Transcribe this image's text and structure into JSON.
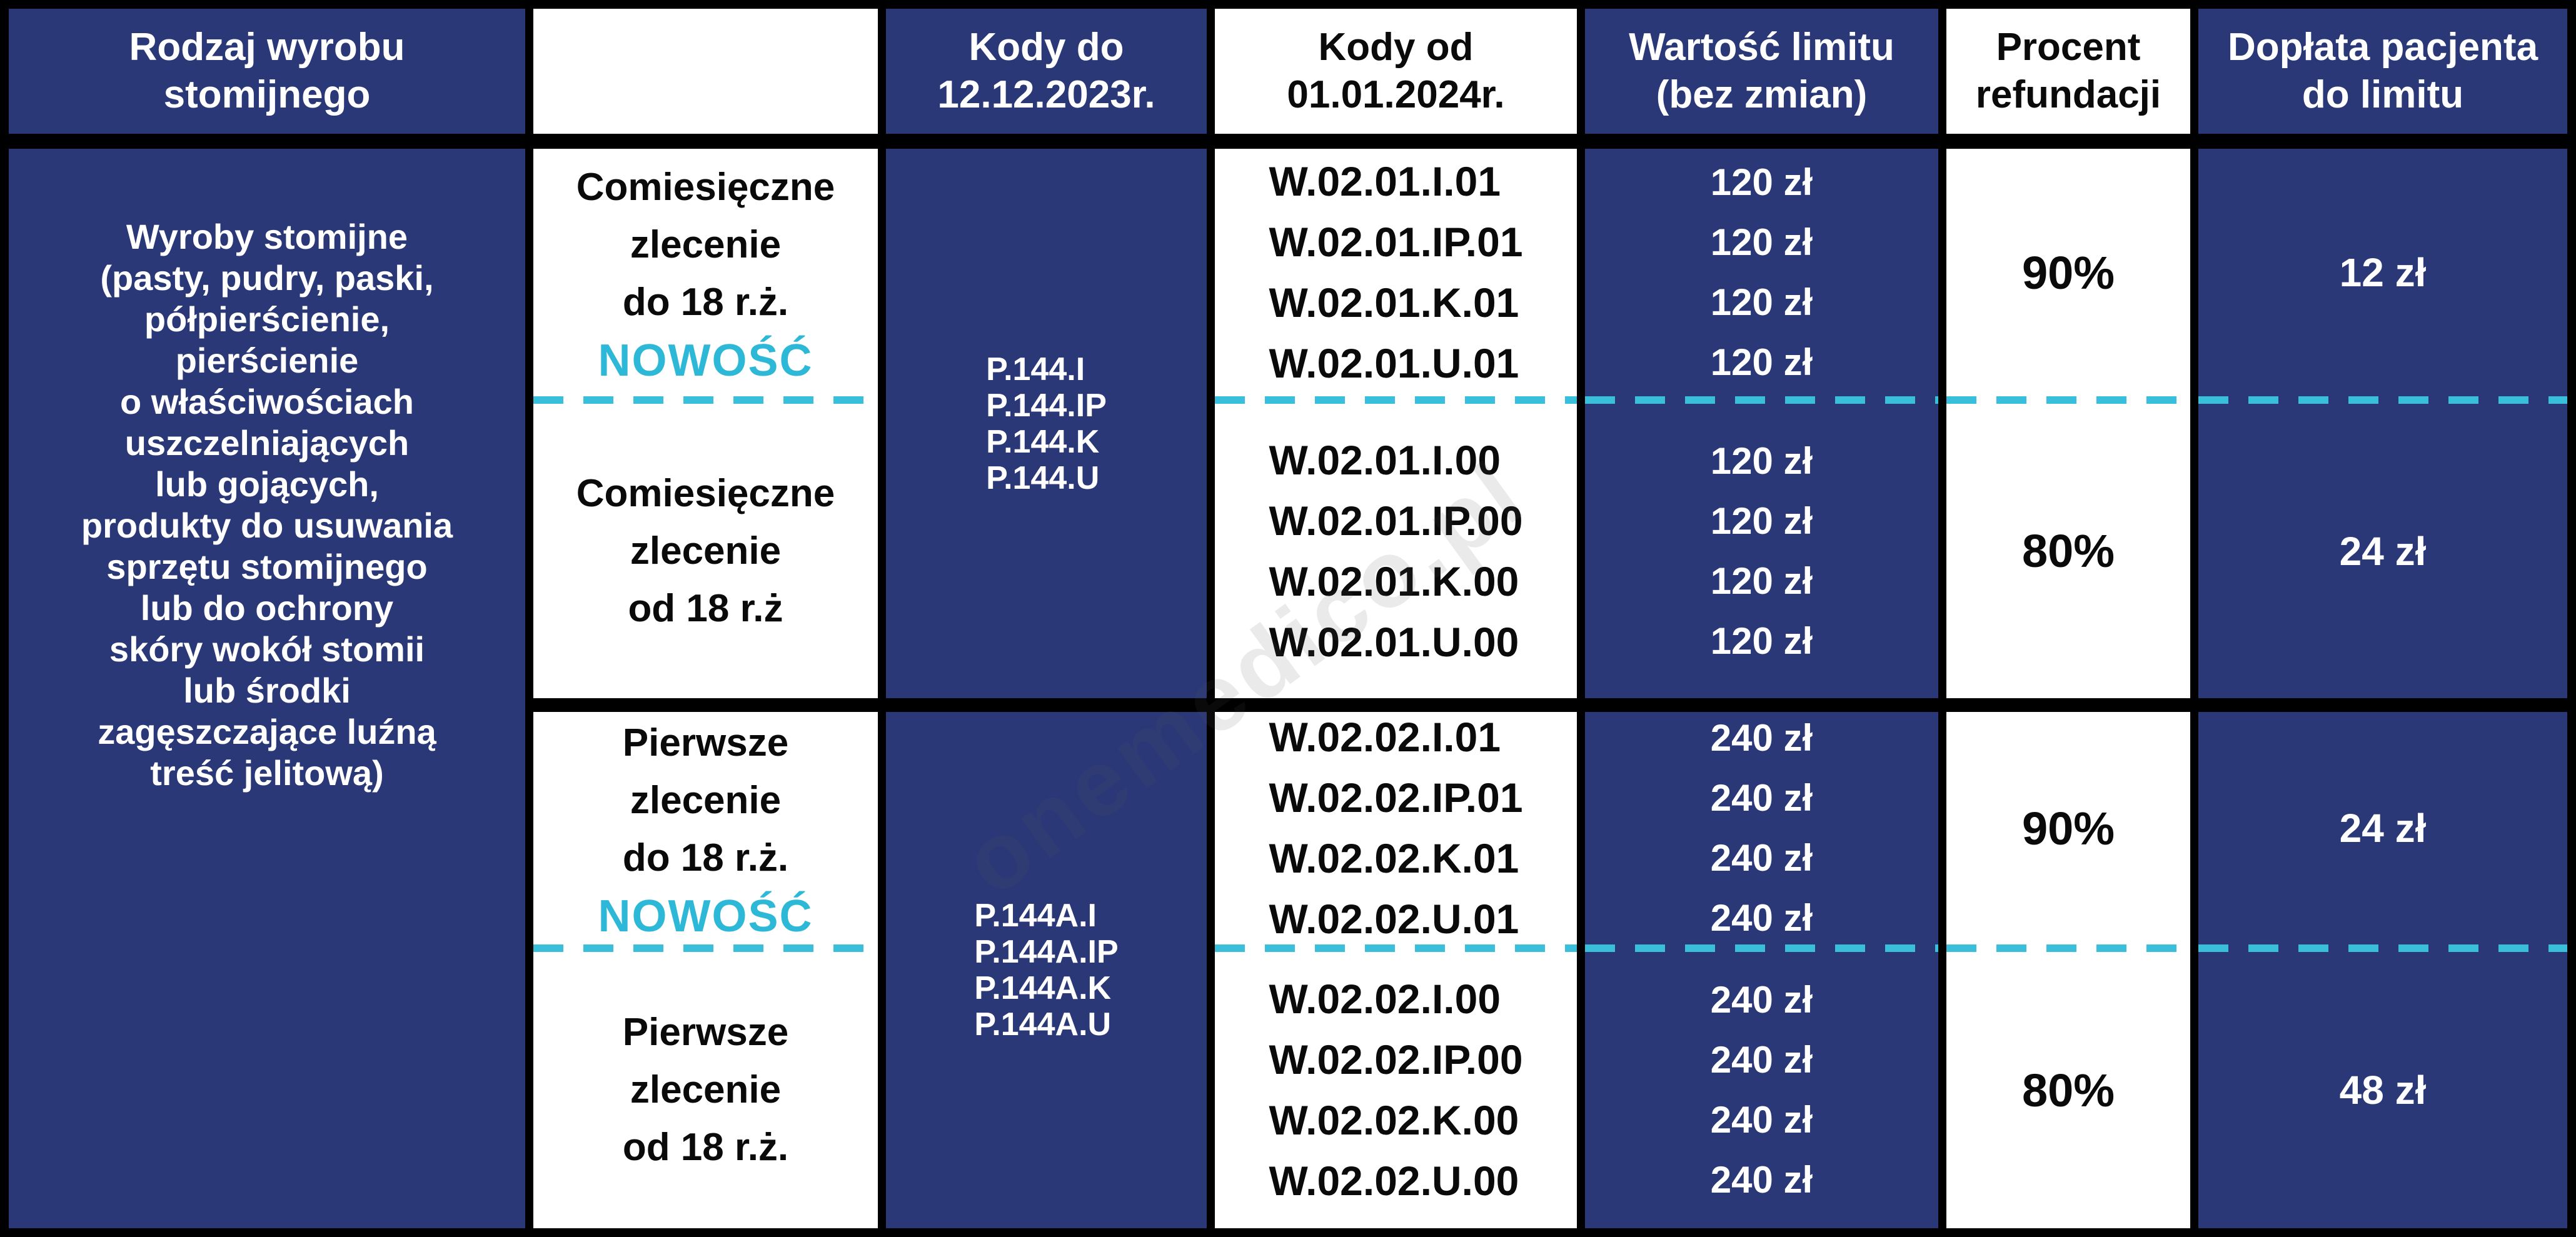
{
  "colors": {
    "navy": "#2b3878",
    "cyan_accent": "#2eb8d8",
    "dash_cyan": "#39bfda",
    "border_black": "#000000",
    "white": "#ffffff"
  },
  "watermark": "onemedico.pl",
  "chart_data": {
    "type": "table",
    "title": "",
    "columns": {
      "product_type": "Rodzaj wyrobu\nstomijnego",
      "order_type": "",
      "codes_old": "Kody do\n12.12.2023r.",
      "codes_new": "Kody od\n01.01.2024r.",
      "limit": "Wartość limitu\n(bez zmian)",
      "percent": "Procent\nrefundacji",
      "copay": "Dopłata pacjenta\ndo limitu"
    },
    "product_type": "Wyroby stomijne\n(pasty, pudry, paski,\npółpierścienie,\npierścienie\no właściwościach\nuszczelniających\nlub gojących,\nprodukty do usuwania\nsprzętu stomijnego\nlub do ochrony\nskóry wokół stomii\nlub środki\nzagęszczające luźną\ntreść jelitową)",
    "groups": [
      {
        "codes_old": "P.144.I\nP.144.IP\nP.144.K\nP.144.U",
        "sub_rows": [
          {
            "order_type": "Comiesięczne\nzlecenie\ndo 18 r.ż.",
            "badge": "NOWOŚĆ",
            "codes_new": "W.02.01.I.01\nW.02.01.IP.01\nW.02.01.K.01\nW.02.01.U.01",
            "limit": "120 zł\n120 zł\n120 zł\n120 zł",
            "percent": "90%",
            "copay": "12 zł"
          },
          {
            "order_type": "Comiesięczne\nzlecenie\nod 18 r.ż",
            "badge": "",
            "codes_new": "W.02.01.I.00\nW.02.01.IP.00\nW.02.01.K.00\nW.02.01.U.00",
            "limit": "120 zł\n120 zł\n120 zł\n120 zł",
            "percent": "80%",
            "copay": "24 zł"
          }
        ]
      },
      {
        "codes_old": "P.144A.I\nP.144A.IP\nP.144A.K\nP.144A.U",
        "sub_rows": [
          {
            "order_type": "Pierwsze\nzlecenie\ndo 18 r.ż.",
            "badge": "NOWOŚĆ",
            "codes_new": "W.02.02.I.01\nW.02.02.IP.01\nW.02.02.K.01\nW.02.02.U.01",
            "limit": "240 zł\n240 zł\n240 zł\n240 zł",
            "percent": "90%",
            "copay": "24 zł"
          },
          {
            "order_type": "Pierwsze\nzlecenie\nod 18 r.ż.",
            "badge": "",
            "codes_new": "W.02.02.I.00\nW.02.02.IP.00\nW.02.02.K.00\nW.02.02.U.00",
            "limit": "240 zł\n240 zł\n240 zł\n240 zł",
            "percent": "80%",
            "copay": "48 zł"
          }
        ]
      }
    ]
  }
}
